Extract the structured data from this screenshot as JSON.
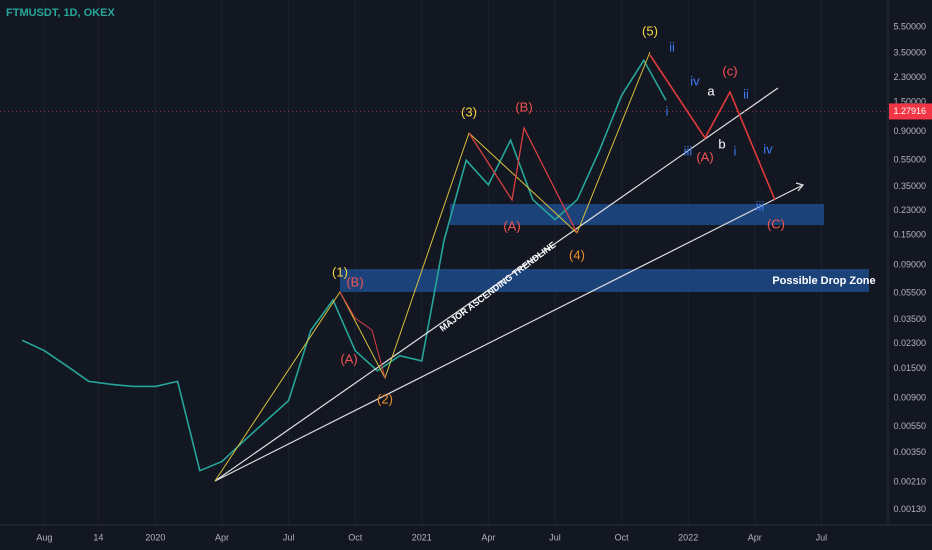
{
  "header": {
    "symbol": "FTMUSDT, 1D, OKEX"
  },
  "chart_data": {
    "type": "line",
    "yscale": "log",
    "color": "#26a69a",
    "x": [
      "2019-07",
      "2019-08",
      "2019-09",
      "2019-10",
      "2019-11",
      "2019-12",
      "2020-01",
      "2020-02",
      "2020-03",
      "2020-04",
      "2020-05",
      "2020-06",
      "2020-07",
      "2020-08",
      "2020-09",
      "2020-10",
      "2020-11",
      "2020-12",
      "2021-01",
      "2021-02",
      "2021-03",
      "2021-04",
      "2021-05",
      "2021-06",
      "2021-07",
      "2021-08",
      "2021-09",
      "2021-10",
      "2021-11",
      "2021-12"
    ],
    "values": [
      0.0244,
      0.0204,
      0.0157,
      0.012,
      0.0114,
      0.011,
      0.011,
      0.012,
      0.00256,
      0.003,
      0.0043,
      0.0061,
      0.0086,
      0.029,
      0.049,
      0.0204,
      0.0144,
      0.0187,
      0.0171,
      0.137,
      0.55,
      0.36,
      0.78,
      0.278,
      0.197,
      0.278,
      0.65,
      1.69,
      3.1,
      1.55
    ],
    "xlim": [
      "2019-06",
      "2022-10"
    ],
    "xticks": [
      {
        "value": "2019-08",
        "label": "Aug"
      },
      {
        "value": "2019-10-14",
        "label": "14"
      },
      {
        "value": "2020-01",
        "label": "2020"
      },
      {
        "value": "2020-04",
        "label": "Apr"
      },
      {
        "value": "2020-07",
        "label": "Jul"
      },
      {
        "value": "2020-10",
        "label": "Oct"
      },
      {
        "value": "2021-01",
        "label": "2021"
      },
      {
        "value": "2021-04",
        "label": "Apr"
      },
      {
        "value": "2021-07",
        "label": "Jul"
      },
      {
        "value": "2021-10",
        "label": "Oct"
      },
      {
        "value": "2022-01",
        "label": "2022"
      },
      {
        "value": "2022-04",
        "label": "Apr"
      },
      {
        "value": "2022-07",
        "label": "Jul"
      }
    ],
    "ylim": [
      0.001,
      8.8
    ],
    "yticks": [
      {
        "value": 5.5,
        "label": "5.50000"
      },
      {
        "value": 3.5,
        "label": "3.50000"
      },
      {
        "value": 2.3,
        "label": "2.30000"
      },
      {
        "value": 1.5,
        "label": "1.50000"
      },
      {
        "value": 0.9,
        "label": "0.90000"
      },
      {
        "value": 0.55,
        "label": "0.55000"
      },
      {
        "value": 0.35,
        "label": "0.35000"
      },
      {
        "value": 0.23,
        "label": "0.23000"
      },
      {
        "value": 0.15,
        "label": "0.15000"
      },
      {
        "value": 0.09,
        "label": "0.09000"
      },
      {
        "value": 0.055,
        "label": "0.05500"
      },
      {
        "value": 0.035,
        "label": "0.03500"
      },
      {
        "value": 0.023,
        "label": "0.02300"
      },
      {
        "value": 0.015,
        "label": "0.01500"
      },
      {
        "value": 0.009,
        "label": "0.00900"
      },
      {
        "value": 0.0055,
        "label": "0.00550"
      },
      {
        "value": 0.0035,
        "label": "0.00350"
      },
      {
        "value": 0.0021,
        "label": "0.00210"
      },
      {
        "value": 0.0013,
        "label": "0.00130"
      }
    ],
    "grid": true,
    "last_price": 1.27916,
    "annotations": [
      {
        "text": "(1)",
        "color": "#f5d442"
      },
      {
        "text": "(B)",
        "color": "#f05454"
      },
      {
        "text": "(A)",
        "color": "#f05454"
      },
      {
        "text": "(2)",
        "color": "#f0902a"
      },
      {
        "text": "(3)",
        "color": "#f5d442"
      },
      {
        "text": "(B)",
        "color": "#f05454"
      },
      {
        "text": "(A)",
        "color": "#f05454"
      },
      {
        "text": "(4)",
        "color": "#f0902a"
      },
      {
        "text": "(5)",
        "color": "#f5d442"
      },
      {
        "text": "ii",
        "color": "#3d7bf5"
      },
      {
        "text": "iv",
        "color": "#3d7bf5"
      },
      {
        "text": "i",
        "color": "#3d7bf5"
      },
      {
        "text": "iii",
        "color": "#3d7bf5"
      },
      {
        "text": "(A)",
        "color": "#f05454"
      },
      {
        "text": "a",
        "color": "#ffffff"
      },
      {
        "text": "(c)",
        "color": "#f05454"
      },
      {
        "text": "ii",
        "color": "#3d7bf5"
      },
      {
        "text": "b",
        "color": "#ffffff"
      },
      {
        "text": "i",
        "color": "#3d7bf5"
      },
      {
        "text": "iv",
        "color": "#3d7bf5"
      },
      {
        "text": "iii",
        "color": "#3d7bf5"
      },
      {
        "text": "(C)",
        "color": "#f05454"
      },
      {
        "text": "MAJOR ASCENDING TRENDLINE",
        "color": "#ffffff"
      },
      {
        "text": "Possible Drop Zone",
        "color": "#ffffff"
      }
    ]
  }
}
